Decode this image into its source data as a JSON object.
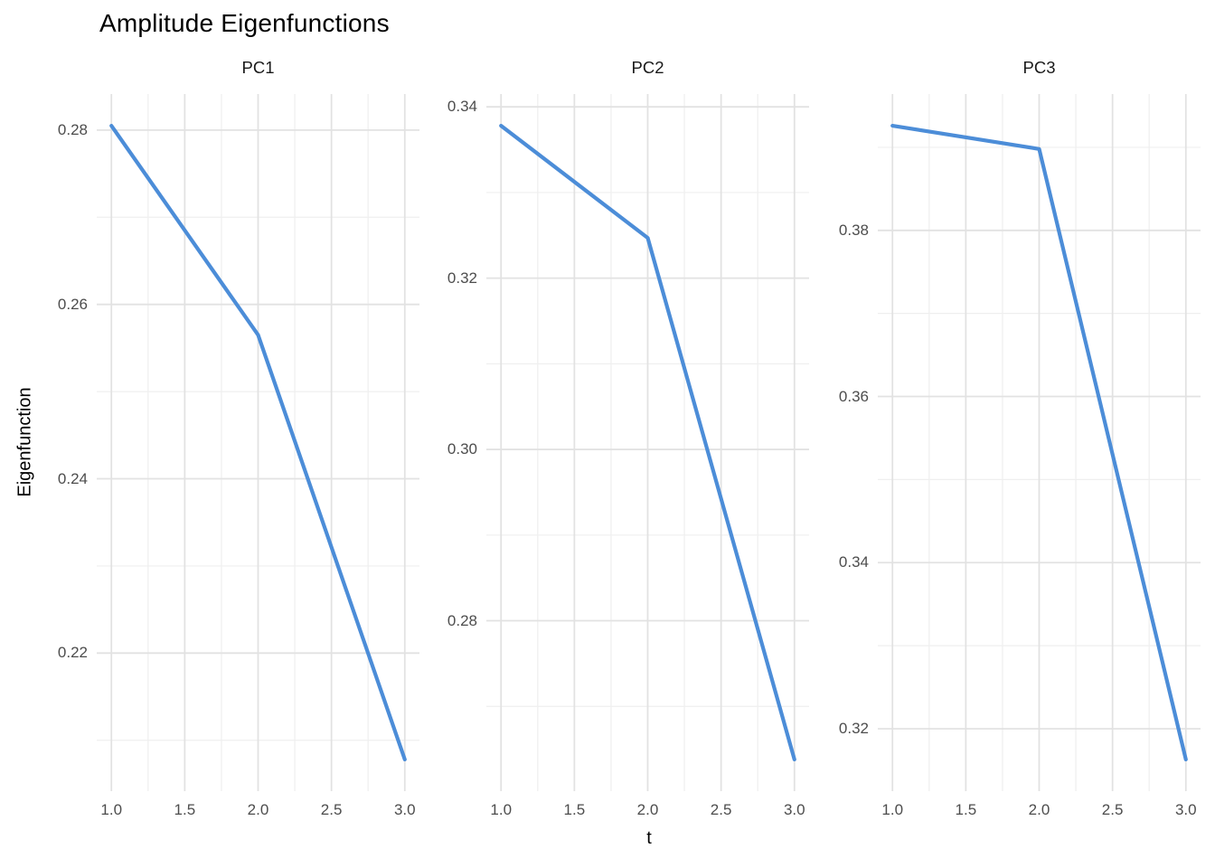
{
  "title": "Amplitude Eigenfunctions",
  "style": {
    "line_color": "#4C8DD8",
    "grid_major_color": "#E2E2E2",
    "grid_minor_color": "#EFEFEF",
    "tick_label_color": "#4D4D4D",
    "strip_text_color": "#1A1A1A",
    "background": "#FFFFFF"
  },
  "chart_data": {
    "type": "line",
    "title": "Amplitude Eigenfunctions",
    "xlabel": "t",
    "ylabel": "Eigenfunction",
    "legend": false,
    "grid": true,
    "xlim": [
      0.9,
      3.1
    ],
    "x_ticks": [
      1.0,
      1.5,
      2.0,
      2.5,
      3.0
    ],
    "x_tick_labels": [
      "1.0",
      "1.5",
      "2.0",
      "2.5",
      "3.0"
    ],
    "expansion": 0.05,
    "facets": [
      {
        "label": "PC1",
        "x": [
          1,
          2,
          3
        ],
        "y": [
          0.2805,
          0.2565,
          0.2078
        ],
        "y_ticks": [
          0.22,
          0.24,
          0.26,
          0.28
        ],
        "y_tick_labels": [
          "0.22",
          "0.24",
          "0.26",
          "0.28"
        ]
      },
      {
        "label": "PC2",
        "x": [
          1,
          2,
          3
        ],
        "y": [
          0.3378,
          0.3247,
          0.2638
        ],
        "y_ticks": [
          0.28,
          0.3,
          0.32,
          0.34
        ],
        "y_tick_labels": [
          "0.28",
          "0.30",
          "0.32",
          "0.34"
        ]
      },
      {
        "label": "PC3",
        "x": [
          1,
          2,
          3
        ],
        "y": [
          0.3926,
          0.3898,
          0.3163
        ],
        "y_ticks": [
          0.32,
          0.34,
          0.36,
          0.38
        ],
        "y_tick_labels": [
          "0.32",
          "0.34",
          "0.36",
          "0.38"
        ]
      }
    ]
  }
}
